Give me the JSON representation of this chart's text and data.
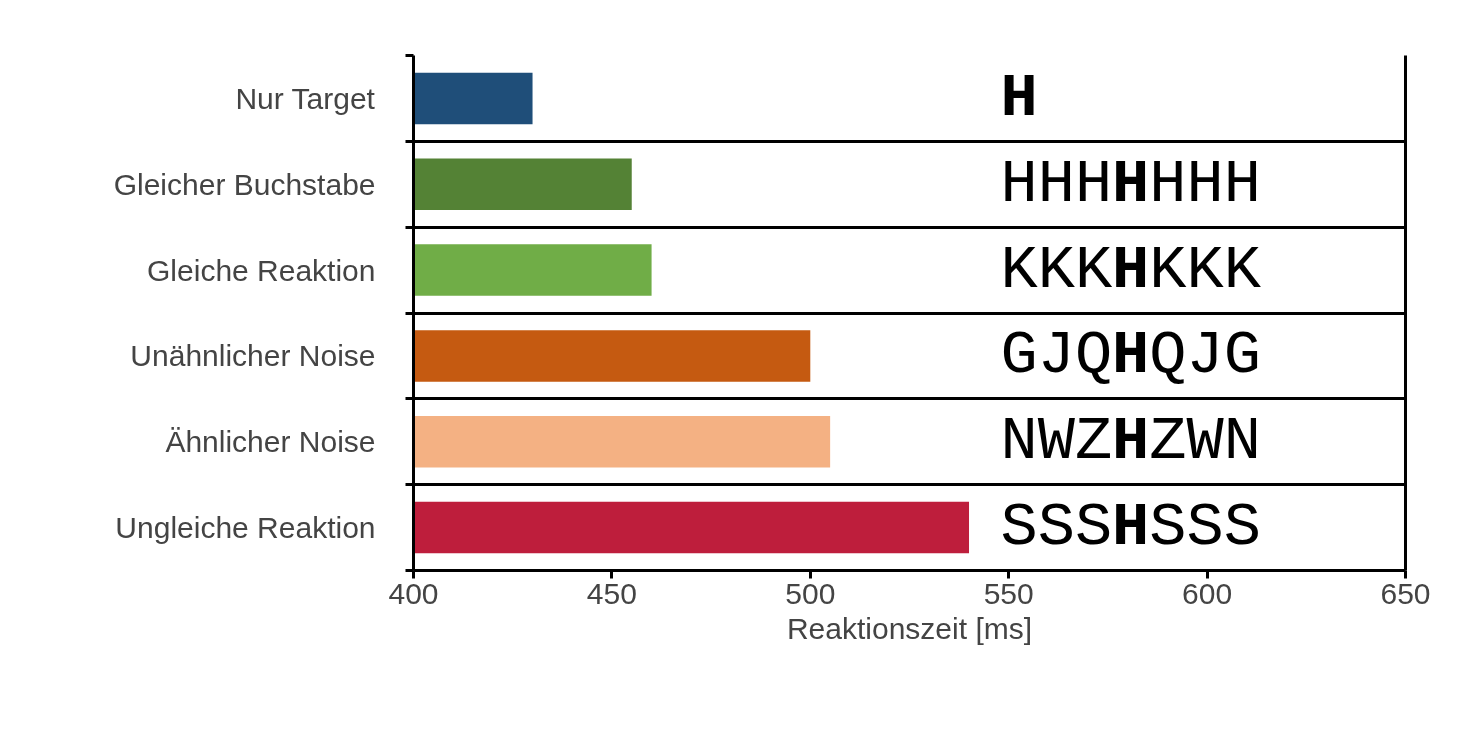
{
  "chart_data": {
    "type": "bar",
    "orientation": "horizontal",
    "xlabel": "Reaktionszeit [ms]",
    "categories": [
      "Nur Target",
      "Gleicher Buchstabe",
      "Gleiche Reaktion",
      "Unähnlicher Noise",
      "Ähnlicher Noise",
      "Ungleiche Reaktion"
    ],
    "values": [
      430,
      455,
      460,
      500,
      505,
      540
    ],
    "colors": [
      "#1f4e79",
      "#548235",
      "#70ad47",
      "#c55a11",
      "#f4b183",
      "#be1e3c"
    ],
    "xlim": [
      400,
      650
    ],
    "xticks": [
      400,
      450,
      500,
      550,
      600,
      650
    ],
    "grid": "y",
    "annotations": [
      "H",
      "HHHHHHH",
      "KKKHKKK",
      "GJQHQJG",
      "NWZHZWN",
      "SSSHSSS"
    ]
  }
}
